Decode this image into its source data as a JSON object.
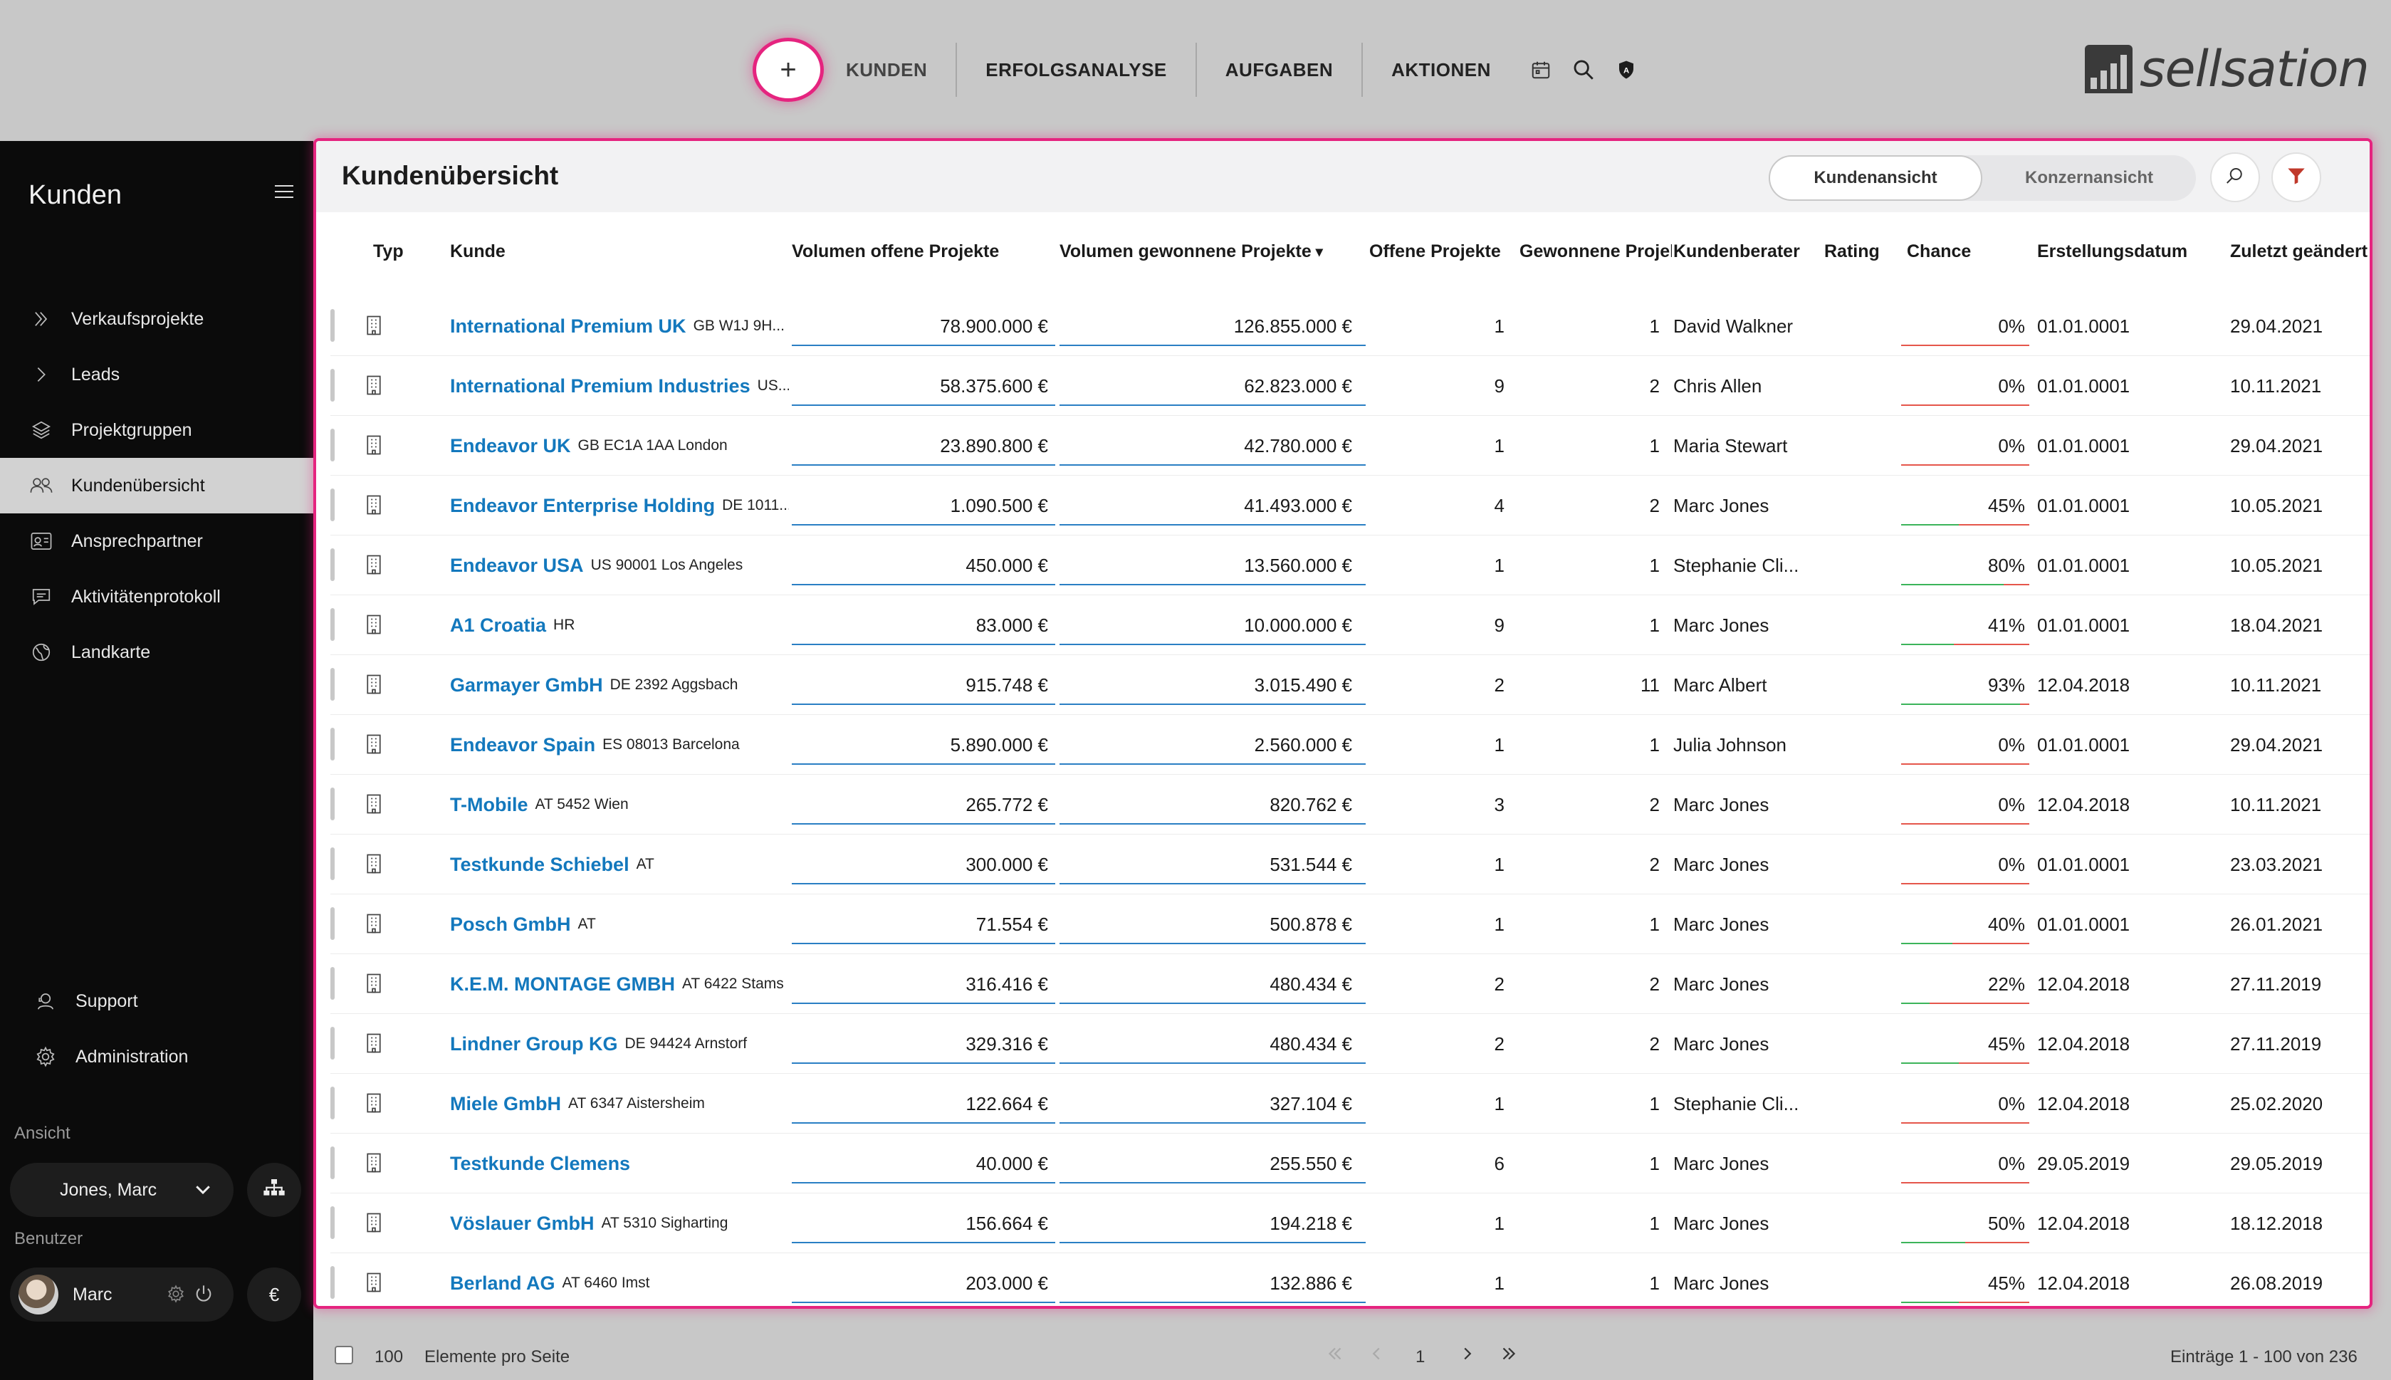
{
  "nav": {
    "add_label": "+",
    "items": [
      "KUNDEN",
      "ERFOLGSANALYSE",
      "AUFGABEN",
      "AKTIONEN"
    ],
    "logo_text": "sellsation"
  },
  "sidebar": {
    "title": "Kunden",
    "items": [
      {
        "label": "Verkaufsprojekte",
        "icon": "double-chevron-right-icon"
      },
      {
        "label": "Leads",
        "icon": "chevron-right-icon"
      },
      {
        "label": "Projektgruppen",
        "icon": "layers-icon"
      },
      {
        "label": "Kundenübersicht",
        "icon": "users-icon"
      },
      {
        "label": "Ansprechpartner",
        "icon": "contact-card-icon"
      },
      {
        "label": "Aktivitätenprotokoll",
        "icon": "chat-icon"
      },
      {
        "label": "Landkarte",
        "icon": "globe-icon"
      }
    ],
    "support": "Support",
    "administration": "Administration",
    "view_label": "Ansicht",
    "view_value": "Jones, Marc",
    "user_label": "Benutzer",
    "user_name": "Marc",
    "currency_symbol": "€"
  },
  "panel": {
    "title": "Kundenübersicht",
    "toggle": [
      "Kundenansicht",
      "Konzernansicht"
    ],
    "columns": [
      "Typ",
      "Kunde",
      "Volumen offene Projekte",
      "Volumen gewonnene Projekte",
      "Offene Projekte",
      "Gewonnene Projekte",
      "Kundenberater",
      "Rating",
      "Chance",
      "Erstellungsdatum",
      "Zuletzt geändert"
    ],
    "sort_indicator": "▾"
  },
  "rows": [
    {
      "name": "International Premium UK",
      "addr": "GB W1J 9H...",
      "vol_open": "78.900.000 €",
      "vol_won": "126.855.000 €",
      "open": "1",
      "won": "1",
      "advisor": "David Walkner",
      "chance": "0%",
      "created": "01.01.0001",
      "changed": "29.04.2021",
      "chance_value": 0
    },
    {
      "name": "International Premium Industries",
      "addr": "US...",
      "vol_open": "58.375.600 €",
      "vol_won": "62.823.000 €",
      "open": "9",
      "won": "2",
      "advisor": "Chris Allen",
      "chance": "0%",
      "created": "01.01.0001",
      "changed": "10.11.2021",
      "chance_value": 0
    },
    {
      "name": "Endeavor UK",
      "addr": "GB EC1A 1AA London",
      "vol_open": "23.890.800 €",
      "vol_won": "42.780.000 €",
      "open": "1",
      "won": "1",
      "advisor": "Maria Stewart",
      "chance": "0%",
      "created": "01.01.0001",
      "changed": "29.04.2021",
      "chance_value": 0
    },
    {
      "name": "Endeavor Enterprise Holding",
      "addr": "DE 1011...",
      "vol_open": "1.090.500 €",
      "vol_won": "41.493.000 €",
      "open": "4",
      "won": "2",
      "advisor": "Marc Jones",
      "chance": "45%",
      "created": "01.01.0001",
      "changed": "10.05.2021",
      "chance_value": 45
    },
    {
      "name": "Endeavor USA",
      "addr": "US 90001 Los Angeles",
      "vol_open": "450.000 €",
      "vol_won": "13.560.000 €",
      "open": "1",
      "won": "1",
      "advisor": "Stephanie Cli...",
      "chance": "80%",
      "created": "01.01.0001",
      "changed": "10.05.2021",
      "chance_value": 80
    },
    {
      "name": "A1 Croatia",
      "addr": "HR",
      "vol_open": "83.000 €",
      "vol_won": "10.000.000 €",
      "open": "9",
      "won": "1",
      "advisor": "Marc Jones",
      "chance": "41%",
      "created": "01.01.0001",
      "changed": "18.04.2021",
      "chance_value": 41
    },
    {
      "name": "Garmayer GmbH",
      "addr": "DE 2392 Aggsbach",
      "vol_open": "915.748 €",
      "vol_won": "3.015.490 €",
      "open": "2",
      "won": "11",
      "advisor": "Marc Albert",
      "chance": "93%",
      "created": "12.04.2018",
      "changed": "10.11.2021",
      "chance_value": 93
    },
    {
      "name": "Endeavor Spain",
      "addr": "ES 08013 Barcelona",
      "vol_open": "5.890.000 €",
      "vol_won": "2.560.000 €",
      "open": "1",
      "won": "1",
      "advisor": "Julia Johnson",
      "chance": "0%",
      "created": "01.01.0001",
      "changed": "29.04.2021",
      "chance_value": 0
    },
    {
      "name": "T-Mobile",
      "addr": "AT 5452 Wien",
      "vol_open": "265.772 €",
      "vol_won": "820.762 €",
      "open": "3",
      "won": "2",
      "advisor": "Marc Jones",
      "chance": "0%",
      "created": "12.04.2018",
      "changed": "10.11.2021",
      "chance_value": 0
    },
    {
      "name": "Testkunde Schiebel",
      "addr": "AT",
      "vol_open": "300.000 €",
      "vol_won": "531.544 €",
      "open": "1",
      "won": "2",
      "advisor": "Marc Jones",
      "chance": "0%",
      "created": "01.01.0001",
      "changed": "23.03.2021",
      "chance_value": 0
    },
    {
      "name": "Posch GmbH",
      "addr": "AT",
      "vol_open": "71.554 €",
      "vol_won": "500.878 €",
      "open": "1",
      "won": "1",
      "advisor": "Marc Jones",
      "chance": "40%",
      "created": "01.01.0001",
      "changed": "26.01.2021",
      "chance_value": 40
    },
    {
      "name": "K.E.M. MONTAGE GMBH",
      "addr": "AT 6422 Stams",
      "vol_open": "316.416 €",
      "vol_won": "480.434 €",
      "open": "2",
      "won": "2",
      "advisor": "Marc Jones",
      "chance": "22%",
      "created": "12.04.2018",
      "changed": "27.11.2019",
      "chance_value": 22
    },
    {
      "name": "Lindner Group KG",
      "addr": "DE 94424 Arnstorf",
      "vol_open": "329.316 €",
      "vol_won": "480.434 €",
      "open": "2",
      "won": "2",
      "advisor": "Marc Jones",
      "chance": "45%",
      "created": "12.04.2018",
      "changed": "27.11.2019",
      "chance_value": 45
    },
    {
      "name": "Miele GmbH",
      "addr": "AT 6347 Aistersheim",
      "vol_open": "122.664 €",
      "vol_won": "327.104 €",
      "open": "1",
      "won": "1",
      "advisor": "Stephanie Cli...",
      "chance": "0%",
      "created": "12.04.2018",
      "changed": "25.02.2020",
      "chance_value": 0
    },
    {
      "name": "Testkunde Clemens",
      "addr": "",
      "vol_open": "40.000 €",
      "vol_won": "255.550 €",
      "open": "6",
      "won": "1",
      "advisor": "Marc Jones",
      "chance": "0%",
      "created": "29.05.2019",
      "changed": "29.05.2019",
      "chance_value": 0
    },
    {
      "name": "Vöslauer GmbH",
      "addr": "AT 5310 Sigharting",
      "vol_open": "156.664 €",
      "vol_won": "194.218 €",
      "open": "1",
      "won": "1",
      "advisor": "Marc Jones",
      "chance": "50%",
      "created": "12.04.2018",
      "changed": "18.12.2018",
      "chance_value": 50
    },
    {
      "name": "Berland AG",
      "addr": "AT 6460 Imst",
      "vol_open": "203.000 €",
      "vol_won": "132.886 €",
      "open": "1",
      "won": "1",
      "advisor": "Marc Jones",
      "chance": "45%",
      "created": "12.04.2018",
      "changed": "26.08.2019",
      "chance_value": 45
    }
  ],
  "footer": {
    "page_size": "100",
    "page_size_label": "Elemente pro Seite",
    "page": "1",
    "entries": "Einträge 1 - 100 von 236"
  },
  "colors": {
    "accent": "#e5247f",
    "link": "#1378bd",
    "underline_blue": "#2a7fc4",
    "chance_green": "#3cb45a",
    "chance_red": "#e5564b"
  }
}
